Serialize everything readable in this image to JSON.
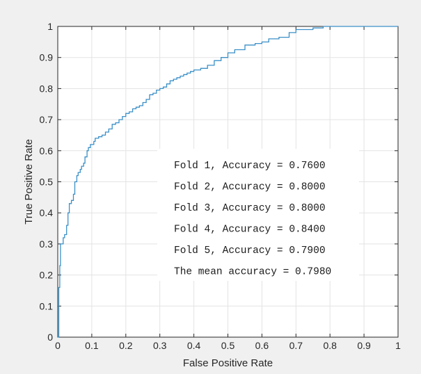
{
  "chart_data": {
    "type": "line",
    "title": "",
    "xlabel": "False Positive Rate",
    "ylabel": "True Positive Rate",
    "xlim": [
      0,
      1
    ],
    "ylim": [
      0,
      1
    ],
    "grid": true,
    "line_color": "#3a8fc7",
    "xticks": [
      "0",
      "0.1",
      "0.2",
      "0.3",
      "0.4",
      "0.5",
      "0.6",
      "0.7",
      "0.8",
      "0.9",
      "1"
    ],
    "yticks": [
      "0",
      "0.1",
      "0.2",
      "0.3",
      "0.4",
      "0.5",
      "0.6",
      "0.7",
      "0.8",
      "0.9",
      "1"
    ],
    "series": [
      {
        "x": [
          0,
          0.003,
          0.006,
          0.008,
          0.012,
          0.016,
          0.02,
          0.026,
          0.03,
          0.034,
          0.04,
          0.046,
          0.05,
          0.056,
          0.06,
          0.066,
          0.07,
          0.076,
          0.08,
          0.086,
          0.09,
          0.096,
          0.1,
          0.106,
          0.11,
          0.12,
          0.13,
          0.14,
          0.15,
          0.16,
          0.17,
          0.18,
          0.19,
          0.2,
          0.21,
          0.22,
          0.23,
          0.24,
          0.25,
          0.26,
          0.27,
          0.28,
          0.29,
          0.3,
          0.31,
          0.32,
          0.33,
          0.34,
          0.35,
          0.36,
          0.37,
          0.38,
          0.39,
          0.4,
          0.42,
          0.44,
          0.46,
          0.48,
          0.5,
          0.52,
          0.55,
          0.58,
          0.6,
          0.62,
          0.65,
          0.68,
          0.7,
          0.72,
          0.75,
          0.78,
          0.8,
          0.85,
          0.9,
          0.95,
          1.0
        ],
        "y": [
          0,
          0.16,
          0.23,
          0.3,
          0.3,
          0.32,
          0.33,
          0.36,
          0.4,
          0.43,
          0.44,
          0.46,
          0.5,
          0.52,
          0.53,
          0.54,
          0.55,
          0.56,
          0.58,
          0.6,
          0.61,
          0.62,
          0.62,
          0.63,
          0.64,
          0.645,
          0.65,
          0.66,
          0.67,
          0.685,
          0.69,
          0.7,
          0.71,
          0.72,
          0.725,
          0.735,
          0.74,
          0.745,
          0.755,
          0.765,
          0.78,
          0.785,
          0.795,
          0.8,
          0.805,
          0.815,
          0.825,
          0.83,
          0.835,
          0.84,
          0.845,
          0.85,
          0.855,
          0.86,
          0.865,
          0.875,
          0.89,
          0.9,
          0.915,
          0.925,
          0.94,
          0.945,
          0.95,
          0.96,
          0.965,
          0.98,
          0.99,
          0.99,
          0.995,
          1.0,
          1.0,
          1.0,
          1.0,
          1.0,
          1.0
        ]
      }
    ],
    "annotations": [
      "Fold 1, Accuracy = 0.7600",
      "Fold 2, Accuracy = 0.8000",
      "Fold 3, Accuracy = 0.8000",
      "Fold 4, Accuracy = 0.8400",
      "Fold 5, Accuracy = 0.7900",
      "The mean accuracy = 0.7980"
    ]
  }
}
